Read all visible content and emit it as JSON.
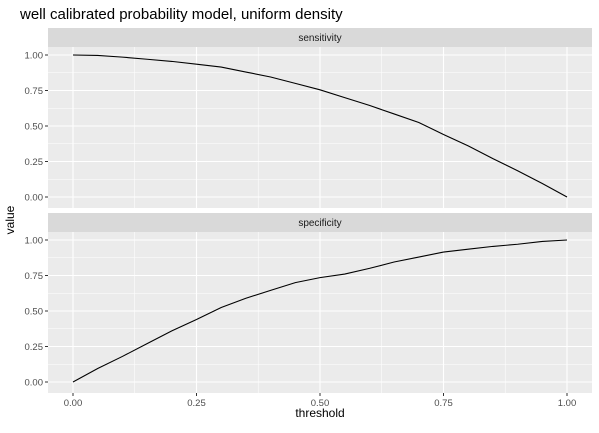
{
  "chart_data": {
    "type": "line",
    "title": "well calibrated probability model, uniform density",
    "xlabel": "threshold",
    "ylabel": "value",
    "xlim": [
      0,
      1
    ],
    "ylim": [
      0,
      1
    ],
    "x_ticks": [
      "0.00",
      "0.25",
      "0.50",
      "0.75",
      "1.00"
    ],
    "y_ticks": [
      "0.00",
      "0.25",
      "0.50",
      "0.75",
      "1.00"
    ],
    "grid": true,
    "facets": [
      {
        "label": "sensitivity",
        "x": [
          0.0,
          0.05,
          0.1,
          0.15,
          0.2,
          0.25,
          0.3,
          0.35,
          0.4,
          0.45,
          0.5,
          0.55,
          0.6,
          0.65,
          0.7,
          0.75,
          0.8,
          0.85,
          0.9,
          0.95,
          1.0
        ],
        "y": [
          1.0,
          0.997,
          0.985,
          0.97,
          0.955,
          0.935,
          0.915,
          0.88,
          0.845,
          0.8,
          0.755,
          0.7,
          0.645,
          0.585,
          0.525,
          0.44,
          0.36,
          0.27,
          0.185,
          0.095,
          0.0
        ]
      },
      {
        "label": "specificity",
        "x": [
          0.0,
          0.05,
          0.1,
          0.15,
          0.2,
          0.25,
          0.3,
          0.35,
          0.4,
          0.45,
          0.5,
          0.55,
          0.6,
          0.65,
          0.7,
          0.75,
          0.8,
          0.85,
          0.9,
          0.95,
          1.0
        ],
        "y": [
          0.0,
          0.095,
          0.18,
          0.27,
          0.36,
          0.44,
          0.525,
          0.59,
          0.645,
          0.7,
          0.735,
          0.76,
          0.8,
          0.845,
          0.88,
          0.915,
          0.935,
          0.955,
          0.97,
          0.99,
          1.0
        ]
      }
    ]
  }
}
